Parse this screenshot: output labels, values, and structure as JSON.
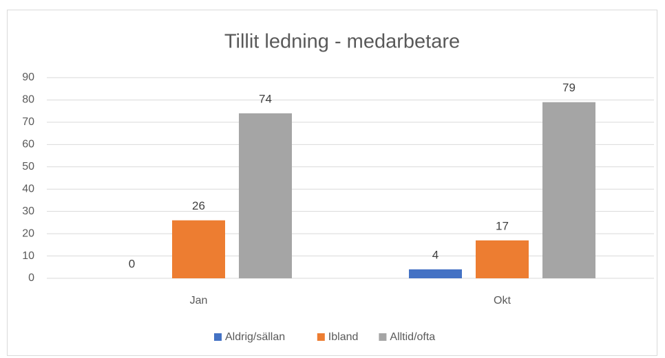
{
  "chart_data": {
    "type": "bar",
    "title": "Tillit ledning - medarbetare",
    "categories": [
      "Jan",
      "Okt"
    ],
    "series": [
      {
        "name": "Aldrig/sällan",
        "color": "#4472c4",
        "values": [
          0,
          4
        ]
      },
      {
        "name": "Ibland",
        "color": "#ed7d31",
        "values": [
          26,
          17
        ]
      },
      {
        "name": "Alltid/ofta",
        "color": "#a5a5a5",
        "values": [
          74,
          79
        ]
      }
    ],
    "ylim": [
      0,
      90
    ],
    "yticks": [
      0,
      10,
      20,
      30,
      40,
      50,
      60,
      70,
      80,
      90
    ],
    "grid": true,
    "legend": "bottom"
  }
}
